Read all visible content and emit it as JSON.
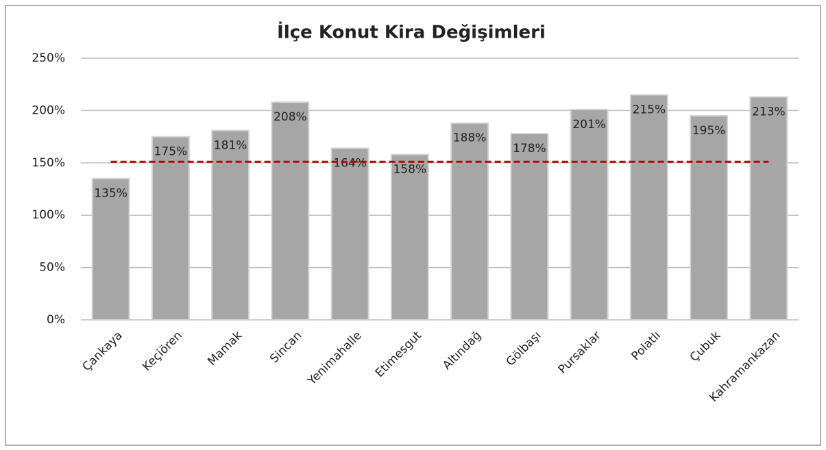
{
  "chart_data": {
    "type": "bar",
    "title": "İlçe Konut Kira Değişimleri",
    "categories": [
      "Çankaya",
      "Keçiören",
      "Mamak",
      "Sincan",
      "Yenimahalle",
      "Etimesgut",
      "Altındağ",
      "Gölbaşı",
      "Pursaklar",
      "Polatlı",
      "Çubuk",
      "Kahramankazan"
    ],
    "values": [
      135,
      175,
      181,
      208,
      164,
      158,
      188,
      178,
      201,
      215,
      195,
      213
    ],
    "value_labels": [
      "135%",
      "175%",
      "181%",
      "208%",
      "164%",
      "158%",
      "188%",
      "178%",
      "201%",
      "215%",
      "195%",
      "213%"
    ],
    "color": "#a6a6a6",
    "ylim": [
      0,
      250
    ],
    "yticks": [
      {
        "value": 0,
        "label": "0%"
      },
      {
        "value": 50,
        "label": "50%"
      },
      {
        "value": 100,
        "label": "100%"
      },
      {
        "value": 150,
        "label": "150%"
      },
      {
        "value": 200,
        "label": "200%"
      },
      {
        "value": 250,
        "label": "250%"
      }
    ],
    "grid": true,
    "reference_line": {
      "value": 151,
      "color": "#c00000"
    }
  }
}
